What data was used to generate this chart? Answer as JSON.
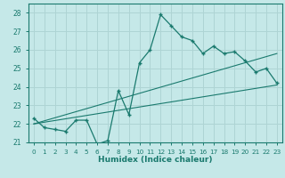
{
  "xlabel": "Humidex (Indice chaleur)",
  "ylabel": "",
  "bg_color": "#c5e8e8",
  "grid_color": "#aed4d4",
  "line_color": "#1a7a6e",
  "xlim": [
    -0.5,
    23.5
  ],
  "ylim": [
    21.0,
    28.5
  ],
  "yticks": [
    21,
    22,
    23,
    24,
    25,
    26,
    27,
    28
  ],
  "xticks": [
    0,
    1,
    2,
    3,
    4,
    5,
    6,
    7,
    8,
    9,
    10,
    11,
    12,
    13,
    14,
    15,
    16,
    17,
    18,
    19,
    20,
    21,
    22,
    23
  ],
  "line1_x": [
    0,
    1,
    2,
    3,
    4,
    5,
    6,
    7,
    8,
    9,
    10,
    11,
    12,
    13,
    14,
    15,
    16,
    17,
    18,
    19,
    20,
    21,
    22,
    23
  ],
  "line1_y": [
    22.3,
    21.8,
    21.7,
    21.6,
    22.2,
    22.2,
    20.9,
    21.1,
    23.8,
    22.5,
    25.3,
    26.0,
    27.9,
    27.3,
    26.7,
    26.5,
    25.8,
    26.2,
    25.8,
    25.9,
    25.4,
    24.8,
    25.0,
    24.2
  ],
  "line2_x": [
    0,
    23
  ],
  "line2_y": [
    22.0,
    24.1
  ],
  "line3_x": [
    0,
    23
  ],
  "line3_y": [
    22.0,
    25.8
  ]
}
